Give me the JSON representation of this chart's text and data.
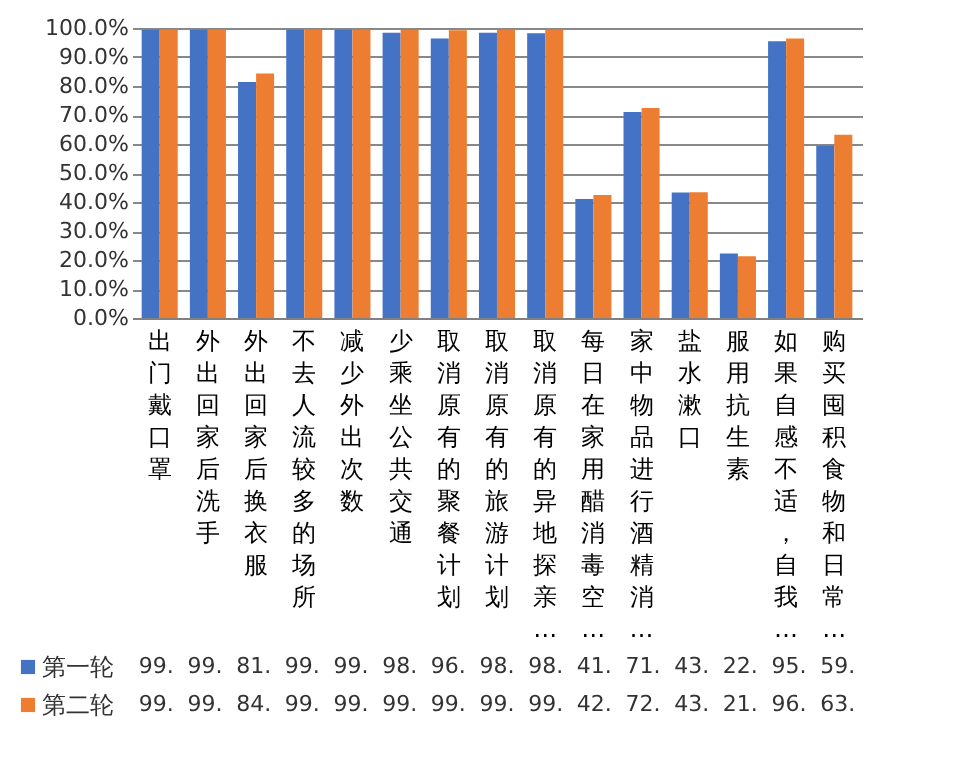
{
  "chart_data": {
    "type": "bar",
    "categories": [
      "出门戴口罩",
      "外出回家后洗手",
      "外出回家后换衣服",
      "不去人流较多的场所",
      "减少外出次数",
      "少乘坐公共交通",
      "取消原有的聚餐计划",
      "取消原有的旅游计划",
      "取消原有的异地探亲…",
      "每日在家用醋消毒空…",
      "家中物品进行酒精消…",
      "盐水漱口",
      "服用抗生素",
      "如果自感不适，自我…",
      "购买囤积食物和日常…"
    ],
    "series": [
      {
        "name": "第一轮",
        "color": "#4472c4",
        "values": [
          99.4,
          99.4,
          81.4,
          99.4,
          99.4,
          98.4,
          96.4,
          98.4,
          98.2,
          41.0,
          71.0,
          43.3,
          22.2,
          95.4,
          59.4
        ],
        "value_labels": [
          "99.",
          "99.",
          "81.",
          "99.",
          "99.",
          "98.",
          "96.",
          "98.",
          "98.",
          "41.",
          "71.",
          "43.",
          "22.",
          "95.",
          "59."
        ]
      },
      {
        "name": "第二轮",
        "color": "#ed7d31",
        "values": [
          99.4,
          99.4,
          84.3,
          99.4,
          99.4,
          99.3,
          99.2,
          99.4,
          99.4,
          42.4,
          72.4,
          43.4,
          21.3,
          96.4,
          63.2
        ],
        "value_labels": [
          "99.",
          "99.",
          "84.",
          "99.",
          "99.",
          "99.",
          "99.",
          "99.",
          "99.",
          "42.",
          "72.",
          "43.",
          "21.",
          "96.",
          "63."
        ]
      }
    ],
    "ylim": [
      0,
      100
    ],
    "yticks": [
      {
        "value": 0,
        "label": "0.0%"
      },
      {
        "value": 10,
        "label": "10.0%"
      },
      {
        "value": 20,
        "label": "20.0%"
      },
      {
        "value": 30,
        "label": "30.0%"
      },
      {
        "value": 40,
        "label": "40.0%"
      },
      {
        "value": 50,
        "label": "50.0%"
      },
      {
        "value": 60,
        "label": "60.0%"
      },
      {
        "value": 70,
        "label": "70.0%"
      },
      {
        "value": 80,
        "label": "80.0%"
      },
      {
        "value": 90,
        "label": "90.0%"
      },
      {
        "value": 100,
        "label": "100.0%"
      }
    ],
    "grid": "y",
    "legend": "bottom"
  }
}
